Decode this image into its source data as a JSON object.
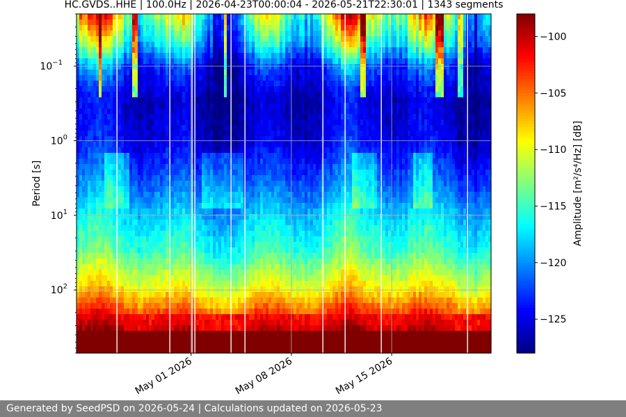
{
  "footer": "Generated by SeedPSD on 2026-05-24 | Calculations updated on 2026-05-23",
  "chart_data": {
    "type": "heatmap",
    "title": "HC.GVDS..HHE | 100.0Hz | 2026-04-23T00:00:04 - 2026-05-21T22:30:01 | 1343 segments",
    "ylabel": "Period [s]",
    "colorbar_label": "Amplitude [m²/s⁴/Hz] [dB]",
    "yscale": "log",
    "y_inverted": true,
    "ylim": [
      0.02,
      700
    ],
    "xlim": [
      "2026-04-23",
      "2026-05-21"
    ],
    "x_ticks": [
      {
        "date": "2026-05-01",
        "label": "May 01 2026"
      },
      {
        "date": "2026-05-08",
        "label": "May 08 2026"
      },
      {
        "date": "2026-05-15",
        "label": "May 15 2026"
      }
    ],
    "y_ticks": [
      {
        "value": 0.1,
        "base": "10",
        "exp": "−1"
      },
      {
        "value": 1,
        "base": "10",
        "exp": "0"
      },
      {
        "value": 10,
        "base": "10",
        "exp": "1"
      },
      {
        "value": 100,
        "base": "10",
        "exp": "2"
      }
    ],
    "color_range": [
      -128,
      -98
    ],
    "colorbar_ticks": [
      "−100",
      "−105",
      "−110",
      "−115",
      "−120",
      "−125"
    ],
    "colorbar_tick_values": [
      -100,
      -105,
      -110,
      -115,
      -120,
      -125
    ],
    "colormap": "jet",
    "grid": true,
    "period_profile": [
      {
        "period": 0.02,
        "db": -112
      },
      {
        "period": 0.05,
        "db": -117
      },
      {
        "period": 0.1,
        "db": -123
      },
      {
        "period": 0.3,
        "db": -126
      },
      {
        "period": 1,
        "db": -125
      },
      {
        "period": 3,
        "db": -122
      },
      {
        "period": 10,
        "db": -118
      },
      {
        "period": 30,
        "db": -115
      },
      {
        "period": 100,
        "db": -109
      },
      {
        "period": 200,
        "db": -104
      },
      {
        "period": 400,
        "db": -99
      },
      {
        "period": 700,
        "db": -98
      }
    ]
  }
}
